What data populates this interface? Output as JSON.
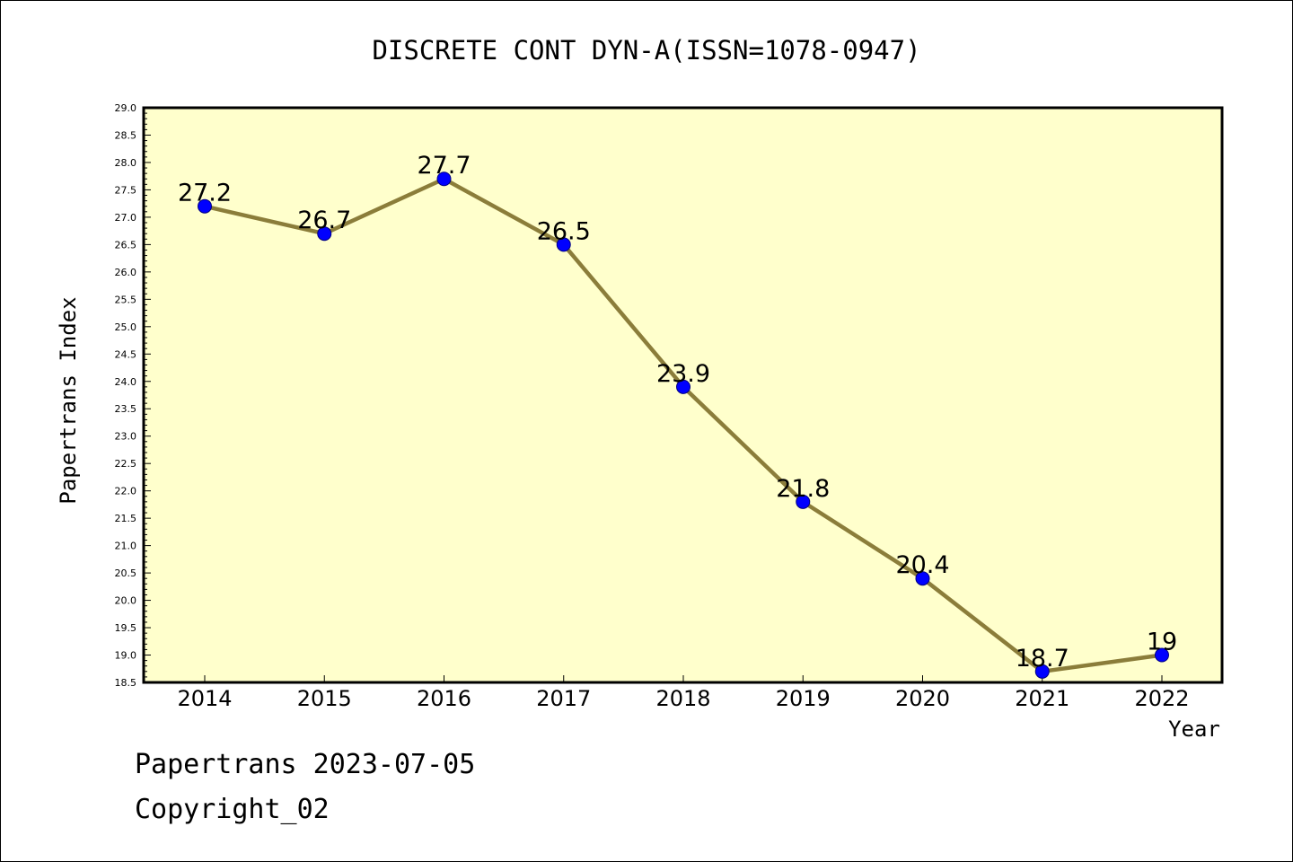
{
  "colors": {
    "plot_background": "#ffffcc",
    "line": "#8b7d3a",
    "marker": "#0000ff",
    "marker_edge": "#000080",
    "axis": "#000000"
  },
  "footer": {
    "date_line": "Papertrans 2023-07-05",
    "copyright_line": "Copyright_02"
  },
  "chart_data": {
    "type": "line",
    "title": "DISCRETE CONT DYN-A(ISSN=1078-0947)",
    "xlabel": "Year",
    "ylabel": "Papertrans Index",
    "categories": [
      "2014",
      "2015",
      "2016",
      "2017",
      "2018",
      "2019",
      "2020",
      "2021",
      "2022"
    ],
    "series": [
      {
        "values": [
          27.2,
          26.7,
          27.7,
          26.5,
          23.9,
          21.8,
          20.4,
          18.7,
          19.0
        ],
        "labels": [
          "27.2",
          "26.7",
          "27.7",
          "26.5",
          "23.9",
          "21.8",
          "20.4",
          "18.7",
          "19"
        ]
      }
    ],
    "ylim": [
      18.5,
      29.0
    ],
    "yticks": [
      "18.5",
      "19.0",
      "19.5",
      "20.0",
      "20.5",
      "21.0",
      "21.5",
      "22.0",
      "22.5",
      "23.0",
      "23.5",
      "24.0",
      "24.5",
      "25.0",
      "25.5",
      "26.0",
      "26.5",
      "27.0",
      "27.5",
      "28.0",
      "28.5",
      "29.0"
    ],
    "grid": false,
    "legend": false
  }
}
